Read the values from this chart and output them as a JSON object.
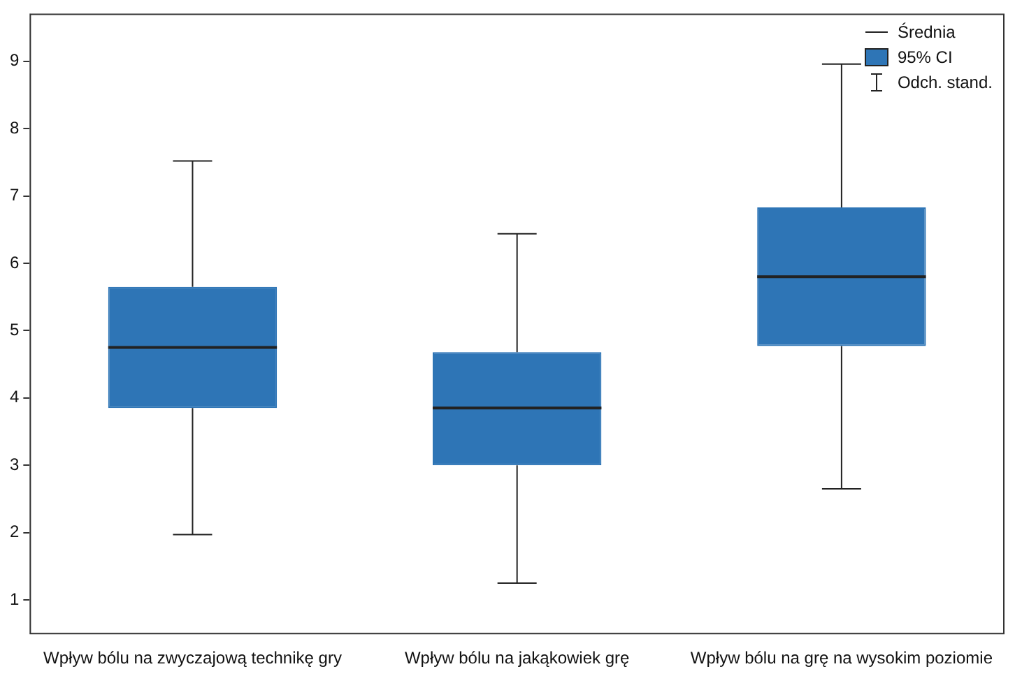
{
  "chart_data": {
    "type": "box",
    "categories": [
      "Wpływ bólu na zwyczajową technikę gry",
      "Wpływ bólu na jakąkowiek grę",
      "Wpływ bólu na grę na wysokim poziomie"
    ],
    "boxes": [
      {
        "low": 1.97,
        "q1": 3.85,
        "median": 4.75,
        "q3": 5.65,
        "high": 7.52
      },
      {
        "low": 1.25,
        "q1": 3.0,
        "median": 3.85,
        "q3": 4.68,
        "high": 6.44
      },
      {
        "low": 2.65,
        "q1": 4.77,
        "median": 5.8,
        "q3": 6.83,
        "high": 8.96
      }
    ],
    "color": "#2e75b6",
    "ylim": [
      0.5,
      9.7
    ],
    "yticks": [
      1,
      2,
      3,
      4,
      5,
      6,
      7,
      8,
      9
    ],
    "grid": false,
    "annotations": [
      "Średnia",
      "95% CI",
      "Odch. stand."
    ]
  }
}
